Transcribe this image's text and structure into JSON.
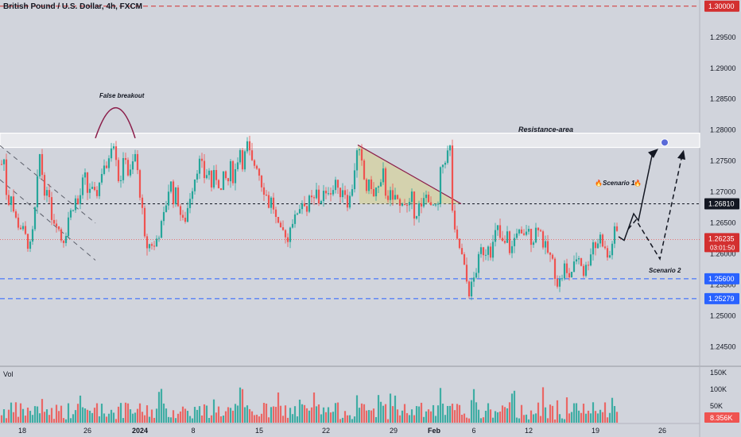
{
  "header": {
    "title": "British Pound / U.S. Dollar, 4h, FXCM"
  },
  "price_axis": {
    "ticks": [
      "1.29500",
      "1.29000",
      "1.28500",
      "1.28000",
      "1.27500",
      "1.27000",
      "1.26500",
      "1.26000",
      "1.25500",
      "1.25000",
      "1.24500"
    ],
    "labels": [
      {
        "value": 1.3,
        "text": "1.30000",
        "color": "#d32f2f"
      },
      {
        "value": 1.2681,
        "text": "1.26810",
        "color": "#131722"
      },
      {
        "value": 1.256,
        "text": "1.25600",
        "color": "#2962ff"
      },
      {
        "value": 1.25279,
        "text": "1.25279",
        "color": "#2962ff"
      }
    ],
    "last_price": {
      "value": 1.26235,
      "text": "1.26235",
      "countdown": "03:01:50",
      "color": "#d32f2f"
    }
  },
  "volume_axis": {
    "ticks": [
      "150K",
      "100K",
      "50K"
    ],
    "current": "8.356K",
    "label": "Vol"
  },
  "time_axis": {
    "ticks": [
      "18",
      "26",
      "2024",
      "8",
      "15",
      "22",
      "29",
      "Feb",
      "6",
      "12",
      "19",
      "26"
    ]
  },
  "annotations": {
    "false_breakout": "False breakout",
    "resistance": "Resistance-area",
    "scenario1": "Scenario 1",
    "scenario2": "Scenario 2"
  },
  "colors": {
    "bull": "#26a69a",
    "bear": "#ef5350",
    "bg": "#d1d4dc",
    "text": "#131722"
  },
  "chart_data": {
    "type": "candlestick",
    "title": "British Pound / U.S. Dollar, 4h, FXCM",
    "y_range": [
      1.242,
      1.301
    ],
    "horizontal_levels": [
      1.3,
      1.2681,
      1.256,
      1.25279
    ],
    "resistance_area": [
      1.2772,
      1.2795
    ],
    "last_price": 1.26235,
    "path": [
      [
        0,
        1.272
      ],
      [
        4,
        1.277
      ],
      [
        8,
        1.27
      ],
      [
        10,
        1.268
      ],
      [
        14,
        1.27
      ],
      [
        18,
        1.266
      ],
      [
        22,
        1.265
      ],
      [
        28,
        1.264
      ],
      [
        34,
        1.262
      ],
      [
        38,
        1.261
      ],
      [
        42,
        1.264
      ],
      [
        46,
        1.27
      ],
      [
        50,
        1.276
      ],
      [
        54,
        1.272
      ],
      [
        58,
        1.269
      ],
      [
        62,
        1.27
      ],
      [
        66,
        1.265
      ],
      [
        70,
        1.266
      ],
      [
        74,
        1.264
      ],
      [
        78,
        1.262
      ],
      [
        82,
        1.263
      ],
      [
        86,
        1.266
      ],
      [
        90,
        1.267
      ],
      [
        94,
        1.269
      ],
      [
        98,
        1.268
      ],
      [
        102,
        1.27
      ],
      [
        106,
        1.273
      ],
      [
        110,
        1.27
      ],
      [
        114,
        1.271
      ],
      [
        118,
        1.269
      ],
      [
        122,
        1.27
      ],
      [
        126,
        1.272
      ],
      [
        130,
        1.275
      ],
      [
        134,
        1.273
      ],
      [
        138,
        1.277
      ],
      [
        142,
        1.279
      ],
      [
        146,
        1.276
      ],
      [
        150,
        1.271
      ],
      [
        154,
        1.274
      ],
      [
        158,
        1.276
      ],
      [
        162,
        1.272
      ],
      [
        166,
        1.274
      ],
      [
        170,
        1.276
      ],
      [
        174,
        1.272
      ],
      [
        178,
        1.268
      ],
      [
        182,
        1.262
      ],
      [
        186,
        1.261
      ],
      [
        190,
        1.262
      ],
      [
        194,
        1.261
      ],
      [
        198,
        1.263
      ],
      [
        202,
        1.264
      ],
      [
        206,
        1.266
      ],
      [
        210,
        1.269
      ],
      [
        214,
        1.272
      ],
      [
        218,
        1.269
      ],
      [
        222,
        1.27
      ],
      [
        226,
        1.267
      ],
      [
        230,
        1.265
      ],
      [
        234,
        1.266
      ],
      [
        238,
        1.269
      ],
      [
        242,
        1.271
      ],
      [
        246,
        1.273
      ],
      [
        250,
        1.275
      ],
      [
        254,
        1.274
      ],
      [
        258,
        1.272
      ],
      [
        262,
        1.274
      ],
      [
        266,
        1.271
      ],
      [
        270,
        1.273
      ],
      [
        274,
        1.272
      ],
      [
        278,
        1.27
      ],
      [
        282,
        1.273
      ],
      [
        286,
        1.271
      ],
      [
        290,
        1.274
      ],
      [
        294,
        1.272
      ],
      [
        298,
        1.275
      ],
      [
        302,
        1.277
      ],
      [
        306,
        1.274
      ],
      [
        310,
        1.278
      ],
      [
        314,
        1.276
      ],
      [
        318,
        1.274
      ],
      [
        322,
        1.275
      ],
      [
        326,
        1.273
      ],
      [
        330,
        1.271
      ],
      [
        334,
        1.27
      ],
      [
        338,
        1.268
      ],
      [
        342,
        1.269
      ],
      [
        346,
        1.266
      ],
      [
        350,
        1.264
      ],
      [
        354,
        1.263
      ],
      [
        358,
        1.264
      ],
      [
        362,
        1.262
      ],
      [
        366,
        1.266
      ],
      [
        370,
        1.265
      ],
      [
        374,
        1.267
      ],
      [
        378,
        1.268
      ],
      [
        382,
        1.269
      ],
      [
        386,
        1.267
      ],
      [
        390,
        1.269
      ],
      [
        394,
        1.268
      ],
      [
        398,
        1.27
      ],
      [
        402,
        1.268
      ],
      [
        406,
        1.27
      ],
      [
        410,
        1.269
      ],
      [
        414,
        1.271
      ],
      [
        418,
        1.27
      ],
      [
        422,
        1.272
      ],
      [
        426,
        1.269
      ],
      [
        430,
        1.271
      ],
      [
        434,
        1.27
      ],
      [
        438,
        1.268
      ],
      [
        442,
        1.27
      ],
      [
        446,
        1.274
      ],
      [
        450,
        1.277
      ],
      [
        454,
        1.275
      ],
      [
        458,
        1.272
      ],
      [
        462,
        1.27
      ],
      [
        466,
        1.272
      ],
      [
        470,
        1.269
      ],
      [
        474,
        1.271
      ],
      [
        478,
        1.27
      ],
      [
        482,
        1.273
      ],
      [
        486,
        1.269
      ],
      [
        490,
        1.27
      ],
      [
        494,
        1.268
      ],
      [
        498,
        1.27
      ],
      [
        502,
        1.267
      ],
      [
        506,
        1.269
      ],
      [
        510,
        1.268
      ],
      [
        514,
        1.267
      ],
      [
        518,
        1.269
      ],
      [
        522,
        1.266
      ],
      [
        526,
        1.268
      ],
      [
        530,
        1.267
      ],
      [
        534,
        1.269
      ],
      [
        538,
        1.27
      ],
      [
        542,
        1.267
      ],
      [
        546,
        1.268
      ],
      [
        550,
        1.266
      ],
      [
        554,
        1.273
      ],
      [
        558,
        1.275
      ],
      [
        562,
        1.276
      ],
      [
        566,
        1.277
      ],
      [
        570,
        1.264
      ],
      [
        574,
        1.262
      ],
      [
        578,
        1.261
      ],
      [
        582,
        1.259
      ],
      [
        586,
        1.256
      ],
      [
        590,
        1.254
      ],
      [
        594,
        1.255
      ],
      [
        598,
        1.257
      ],
      [
        602,
        1.259
      ],
      [
        606,
        1.261
      ],
      [
        610,
        1.26
      ],
      [
        614,
        1.262
      ],
      [
        618,
        1.26
      ],
      [
        622,
        1.263
      ],
      [
        626,
        1.264
      ],
      [
        630,
        1.262
      ],
      [
        634,
        1.261
      ],
      [
        638,
        1.263
      ],
      [
        642,
        1.26
      ],
      [
        646,
        1.262
      ],
      [
        650,
        1.264
      ],
      [
        654,
        1.263
      ],
      [
        658,
        1.262
      ],
      [
        662,
        1.264
      ],
      [
        666,
        1.263
      ],
      [
        670,
        1.262
      ],
      [
        674,
        1.264
      ],
      [
        678,
        1.265
      ],
      [
        682,
        1.262
      ],
      [
        686,
        1.261
      ],
      [
        690,
        1.26
      ],
      [
        694,
        1.259
      ],
      [
        698,
        1.257
      ],
      [
        702,
        1.255
      ],
      [
        706,
        1.256
      ],
      [
        710,
        1.258
      ],
      [
        714,
        1.256
      ],
      [
        718,
        1.257
      ],
      [
        722,
        1.258
      ],
      [
        726,
        1.26
      ],
      [
        730,
        1.259
      ],
      [
        734,
        1.257
      ],
      [
        738,
        1.258
      ],
      [
        742,
        1.26
      ],
      [
        746,
        1.262
      ],
      [
        750,
        1.261
      ],
      [
        754,
        1.263
      ],
      [
        758,
        1.262
      ],
      [
        762,
        1.26
      ],
      [
        766,
        1.259
      ],
      [
        770,
        1.262
      ],
      [
        774,
        1.264
      ],
      [
        778,
        1.263
      ]
    ]
  }
}
